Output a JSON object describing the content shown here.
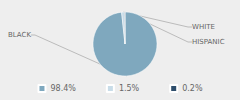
{
  "chart_data": {
    "type": "pie",
    "categories": [
      "BLACK",
      "WHITE",
      "HISPANIC"
    ],
    "values": [
      98.4,
      1.5,
      0.2
    ],
    "value_labels": [
      "98.4%",
      "1.5%",
      "0.2%"
    ],
    "colors": [
      "#7fa8be",
      "#c8dce8",
      "#2e4d6b"
    ],
    "legend": "bottom"
  }
}
